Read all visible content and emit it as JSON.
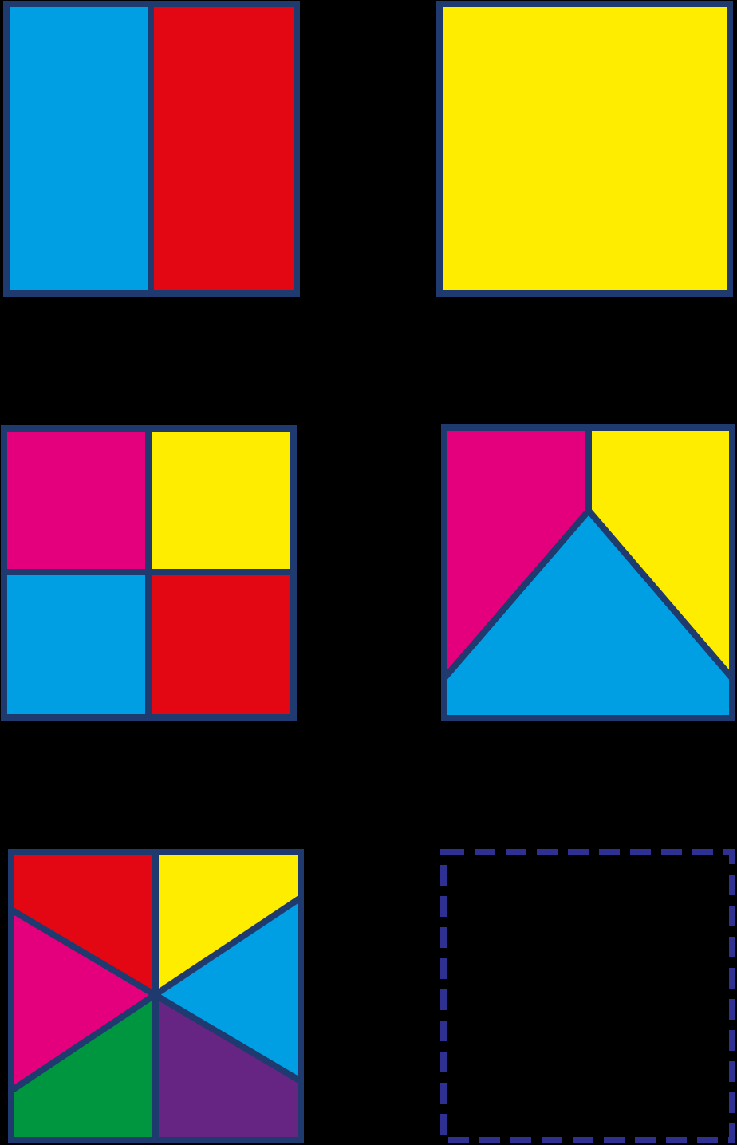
{
  "background": "#000000",
  "colors": {
    "outline": "#1f3a6e",
    "dashed_outline": "#2e3192",
    "cyan": "#009fe3",
    "red": "#e30613",
    "yellow": "#ffed00",
    "magenta": "#e4007d",
    "green": "#009640",
    "purple": "#662483"
  },
  "squares": [
    {
      "name": "square-halves",
      "pieces": [
        "cyan",
        "red"
      ]
    },
    {
      "name": "square-whole",
      "pieces": [
        "yellow"
      ]
    },
    {
      "name": "square-quarters",
      "pieces": [
        "magenta",
        "yellow",
        "cyan",
        "red"
      ]
    },
    {
      "name": "square-thirds",
      "pieces": [
        "magenta",
        "yellow",
        "cyan"
      ]
    },
    {
      "name": "square-sixths",
      "pieces": [
        "red",
        "yellow",
        "magenta",
        "cyan",
        "green",
        "purple"
      ]
    },
    {
      "name": "square-empty-dashed",
      "pieces": []
    }
  ]
}
